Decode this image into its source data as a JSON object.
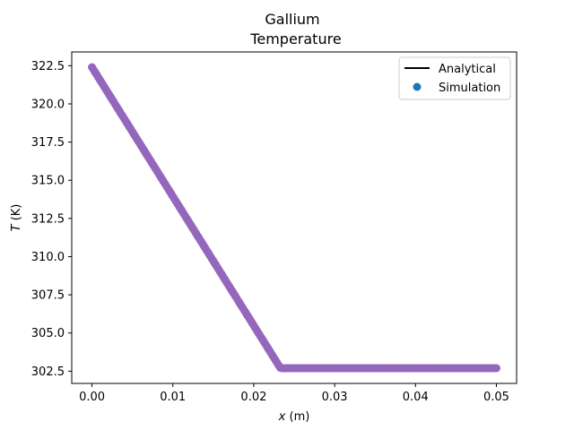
{
  "chart_data": {
    "type": "scatter",
    "title_line1": "Gallium",
    "title_line2": "Temperature",
    "xlabel_var": "x",
    "xlabel_unit": " (m)",
    "ylabel_var": "T",
    "ylabel_unit": " (K)",
    "xlim": [
      -0.0025,
      0.0525
    ],
    "ylim": [
      301.7,
      323.4
    ],
    "xticks": [
      0.0,
      0.01,
      0.02,
      0.03,
      0.04,
      0.05
    ],
    "xtick_labels": [
      "0.00",
      "0.01",
      "0.02",
      "0.03",
      "0.04",
      "0.05"
    ],
    "yticks": [
      302.5,
      305.0,
      307.5,
      310.0,
      312.5,
      315.0,
      317.5,
      320.0,
      322.5
    ],
    "ytick_labels": [
      "302.5",
      "305.0",
      "307.5",
      "310.0",
      "312.5",
      "315.0",
      "317.5",
      "320.0",
      "322.5"
    ],
    "grid": false,
    "legend_position": "top-right",
    "series": [
      {
        "name": "Analytical",
        "kind": "line",
        "color": "#000000",
        "x": [
          0.0,
          0.0233,
          0.05
        ],
        "y": [
          322.4,
          302.7,
          302.7
        ]
      },
      {
        "name": "Simulation",
        "kind": "scatter",
        "color": "#1f77b4",
        "x": [
          0.0,
          0.0233,
          0.05
        ],
        "y": [
          322.4,
          302.7,
          302.7
        ]
      }
    ],
    "marker_color": "#9467bd"
  }
}
